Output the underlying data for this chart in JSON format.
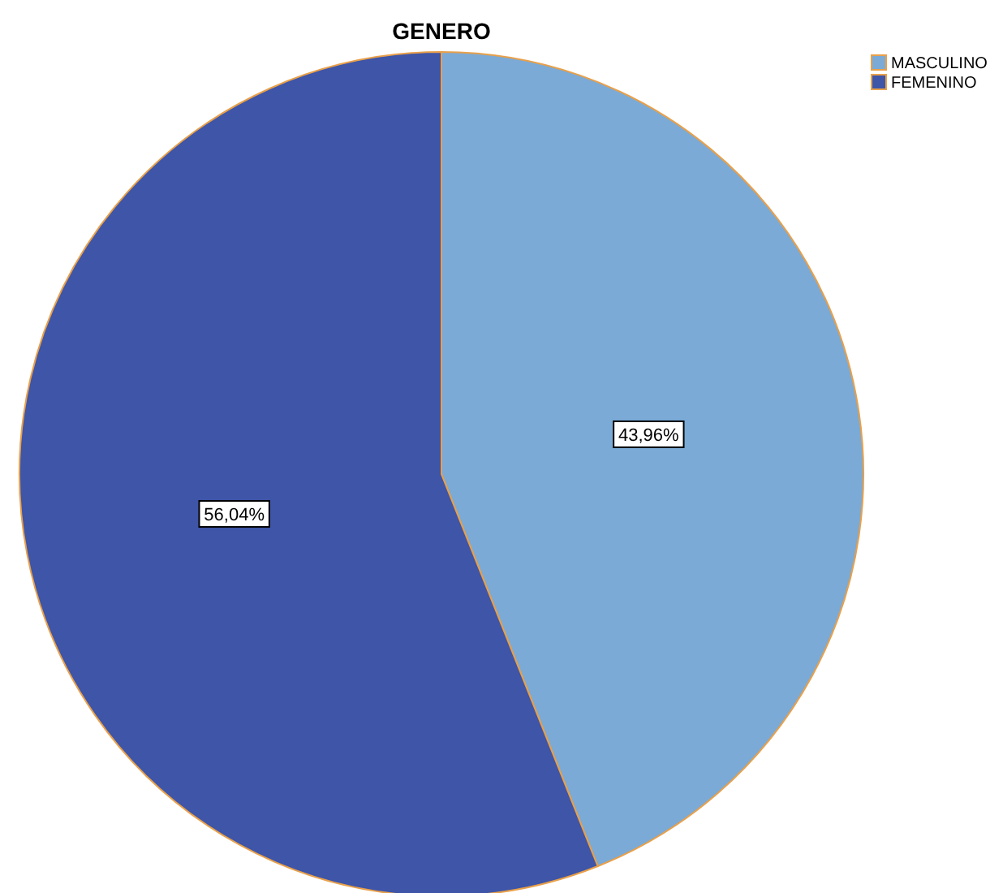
{
  "chart_data": {
    "type": "pie",
    "title": "GENERO",
    "categories": [
      "MASCULINO",
      "FEMENINO"
    ],
    "values": [
      43.96,
      56.04
    ],
    "colors": [
      "#7baad6",
      "#3e55a8"
    ],
    "value_labels": [
      "43,96%",
      "56,04%"
    ],
    "legend": "top right"
  }
}
